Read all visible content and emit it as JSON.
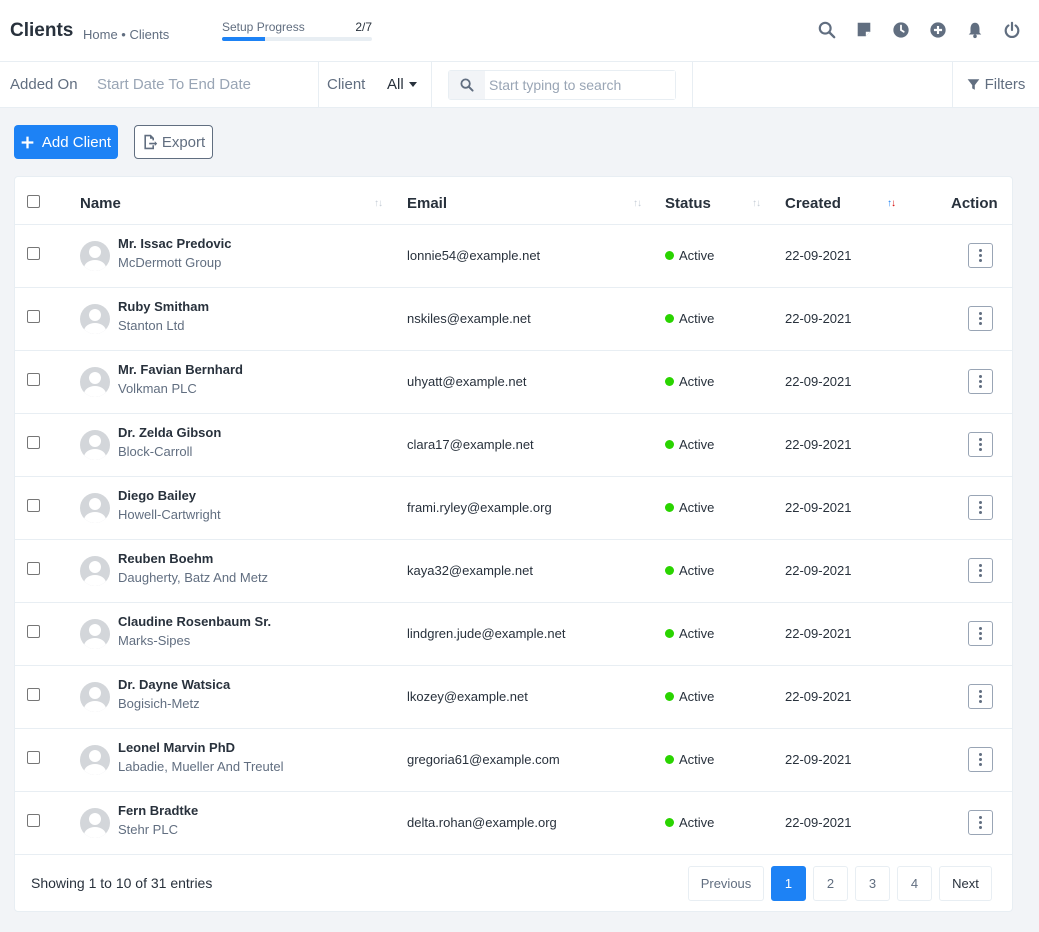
{
  "header": {
    "title": "Clients",
    "breadcrumb": "Home • Clients",
    "progress_label": "Setup Progress",
    "progress_count": "2/7",
    "progress_fraction": 0.286
  },
  "header_icons": [
    "search-icon",
    "sticky-note-icon",
    "clock-icon",
    "plus-circle-icon",
    "bell-icon",
    "power-icon"
  ],
  "filters": {
    "added_on_label": "Added On",
    "date_range_placeholder": "Start Date To End Date",
    "client_label": "Client",
    "client_value": "All",
    "search_placeholder": "Start typing to search",
    "filters_label": "Filters"
  },
  "actions": {
    "add_client_label": "Add Client",
    "export_label": "Export"
  },
  "table": {
    "headers": {
      "name": "Name",
      "email": "Email",
      "status": "Status",
      "created": "Created",
      "action": "Action"
    },
    "rows": [
      {
        "name": "Mr. Issac Predovic",
        "company": "McDermott Group",
        "email": "lonnie54@example.net",
        "status": "Active",
        "created": "22-09-2021"
      },
      {
        "name": "Ruby Smitham",
        "company": "Stanton Ltd",
        "email": "nskiles@example.net",
        "status": "Active",
        "created": "22-09-2021"
      },
      {
        "name": "Mr. Favian Bernhard",
        "company": "Volkman PLC",
        "email": "uhyatt@example.net",
        "status": "Active",
        "created": "22-09-2021"
      },
      {
        "name": "Dr. Zelda Gibson",
        "company": "Block-Carroll",
        "email": "clara17@example.net",
        "status": "Active",
        "created": "22-09-2021"
      },
      {
        "name": "Diego Bailey",
        "company": "Howell-Cartwright",
        "email": "frami.ryley@example.org",
        "status": "Active",
        "created": "22-09-2021"
      },
      {
        "name": "Reuben Boehm",
        "company": "Daugherty, Batz And Metz",
        "email": "kaya32@example.net",
        "status": "Active",
        "created": "22-09-2021"
      },
      {
        "name": "Claudine Rosenbaum Sr.",
        "company": "Marks-Sipes",
        "email": "lindgren.jude@example.net",
        "status": "Active",
        "created": "22-09-2021"
      },
      {
        "name": "Dr. Dayne Watsica",
        "company": "Bogisich-Metz",
        "email": "lkozey@example.net",
        "status": "Active",
        "created": "22-09-2021"
      },
      {
        "name": "Leonel Marvin PhD",
        "company": "Labadie, Mueller And Treutel",
        "email": "gregoria61@example.com",
        "status": "Active",
        "created": "22-09-2021"
      },
      {
        "name": "Fern Bradtke",
        "company": "Stehr PLC",
        "email": "delta.rohan@example.org",
        "status": "Active",
        "created": "22-09-2021"
      }
    ]
  },
  "pagination": {
    "info": "Showing 1 to 10 of 31 entries",
    "previous": "Previous",
    "pages": [
      "1",
      "2",
      "3",
      "4"
    ],
    "active_page": "1",
    "next": "Next"
  },
  "colors": {
    "accent": "#1d82f5",
    "status_active": "#2ad400",
    "sort_desc": "#d30000"
  }
}
